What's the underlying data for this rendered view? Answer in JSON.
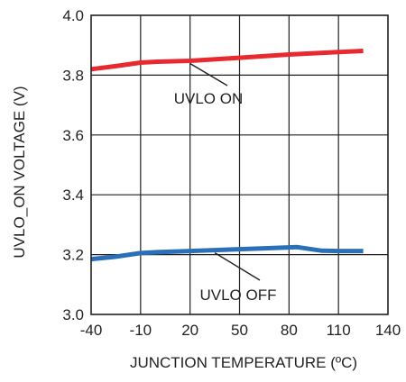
{
  "chart_data": {
    "type": "line",
    "title": "",
    "xlabel": "JUNCTION TEMPERATURE (ºC)",
    "ylabel": "UVLO_ON VOLTAGE (V)",
    "xlim": [
      -40,
      140
    ],
    "ylim": [
      3.0,
      4.0
    ],
    "x_ticks": [
      -40,
      -10,
      20,
      50,
      80,
      110,
      140
    ],
    "x_tick_labels": [
      "-40",
      "-10",
      "20",
      "50",
      "80",
      "110",
      "140"
    ],
    "y_ticks": [
      3.0,
      3.2,
      3.4,
      3.6,
      3.8,
      4.0
    ],
    "y_tick_labels": [
      "3.0",
      "3.2",
      "3.4",
      "3.6",
      "3.8",
      "4.0"
    ],
    "grid": true,
    "legend": "none",
    "series": [
      {
        "name": "UVLO ON",
        "color": "#e8292f",
        "x": [
          -40,
          -25,
          -10,
          0,
          20,
          50,
          80,
          110,
          125
        ],
        "y": [
          3.82,
          3.83,
          3.842,
          3.845,
          3.848,
          3.858,
          3.869,
          3.877,
          3.881
        ]
      },
      {
        "name": "UVLO OFF",
        "color": "#2a70b8",
        "x": [
          -40,
          -25,
          -10,
          0,
          20,
          50,
          80,
          85,
          100,
          110,
          125
        ],
        "y": [
          3.185,
          3.193,
          3.205,
          3.208,
          3.212,
          3.218,
          3.224,
          3.225,
          3.213,
          3.212,
          3.212
        ]
      }
    ],
    "annotations": [
      {
        "text": "UVLO ON",
        "series": 0,
        "x": 20,
        "y": 3.848
      },
      {
        "text": "UVLO OFF",
        "series": 1,
        "x": 35,
        "y": 3.215
      }
    ]
  }
}
